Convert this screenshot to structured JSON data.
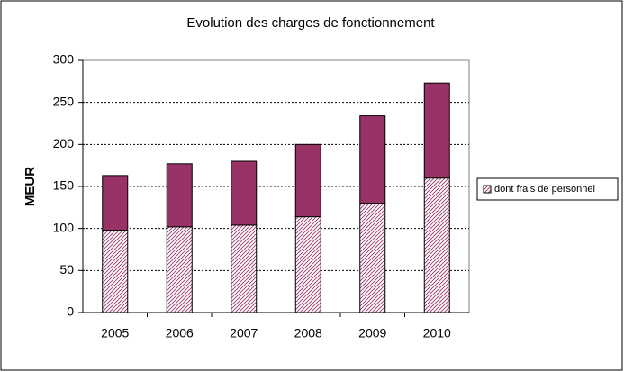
{
  "chart_data": {
    "type": "stacked-bar",
    "title": "Evolution des charges de fonctionnement",
    "y_label": "MEUR",
    "categories": [
      "2005",
      "2006",
      "2007",
      "2008",
      "2009",
      "2010"
    ],
    "series": [
      {
        "name": "dont frais de personnel",
        "color": "#993366",
        "pattern": "hatch",
        "values": [
          98,
          102,
          104,
          114,
          130,
          160
        ]
      },
      {
        "color": "#993366",
        "values": [
          65,
          75,
          76,
          86,
          104,
          113
        ]
      }
    ],
    "ylim": [
      0,
      300
    ],
    "yticks": [
      0,
      50,
      100,
      150,
      200,
      250,
      300
    ],
    "grid": true,
    "legend": "right"
  }
}
